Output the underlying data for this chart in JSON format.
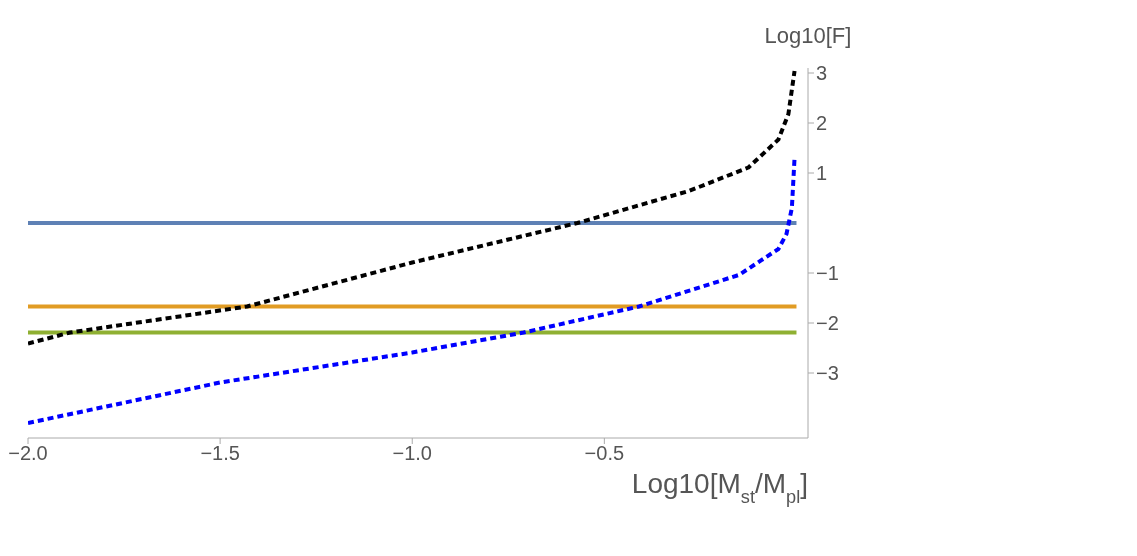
{
  "chart_data": {
    "type": "line",
    "xlabel": "Log10[M$_{st}$/M$_{pl}$]",
    "ylabel": "Log10[F]",
    "xlim": [
      -2.0,
      0.03
    ],
    "ylim": [
      -4.3,
      3.1
    ],
    "xticks": [
      {
        "value": -2.0,
        "label": "−2.0"
      },
      {
        "value": -1.5,
        "label": "−1.5"
      },
      {
        "value": -1.0,
        "label": "−1.0"
      },
      {
        "value": -0.5,
        "label": "−0.5"
      }
    ],
    "yticks": [
      {
        "value": -3,
        "label": "−3"
      },
      {
        "value": -2,
        "label": "−2"
      },
      {
        "value": -1,
        "label": "−1"
      },
      1,
      2,
      3
    ],
    "grid": false,
    "legend": false,
    "marker": "none",
    "series": [
      {
        "color": "#5e81b5",
        "line_style": "solid",
        "x": [
          -2.0,
          0.0
        ],
        "values": [
          0,
          0
        ]
      },
      {
        "color": "#e19c24",
        "line_style": "solid",
        "x": [
          -2.0,
          0.0
        ],
        "values": [
          -1.67,
          -1.67
        ]
      },
      {
        "color": "#8fb032",
        "line_style": "solid",
        "x": [
          -2.0,
          0.0
        ],
        "values": [
          -2.19,
          -2.19
        ]
      },
      {
        "color": "#000000",
        "line_style": "dashed",
        "x": [
          -2.0,
          -1.89,
          -1.43,
          -1.0,
          -0.57,
          -0.28,
          -0.125,
          -0.047,
          -0.021,
          -0.005
        ],
        "values": [
          -2.41,
          -2.19,
          -1.67,
          -0.79,
          0.0,
          0.64,
          1.11,
          1.67,
          2.18,
          3.04
        ]
      },
      {
        "color": "#0000ff",
        "line_style": "dashed",
        "x": [
          -2.0,
          -1.5,
          -1.0,
          -0.71,
          -0.41,
          -0.15,
          -0.047,
          -0.026,
          -0.012,
          -0.005
        ],
        "values": [
          -4.0,
          -3.19,
          -2.59,
          -2.19,
          -1.67,
          -1.04,
          -0.52,
          -0.22,
          0.3,
          1.3
        ]
      }
    ]
  }
}
